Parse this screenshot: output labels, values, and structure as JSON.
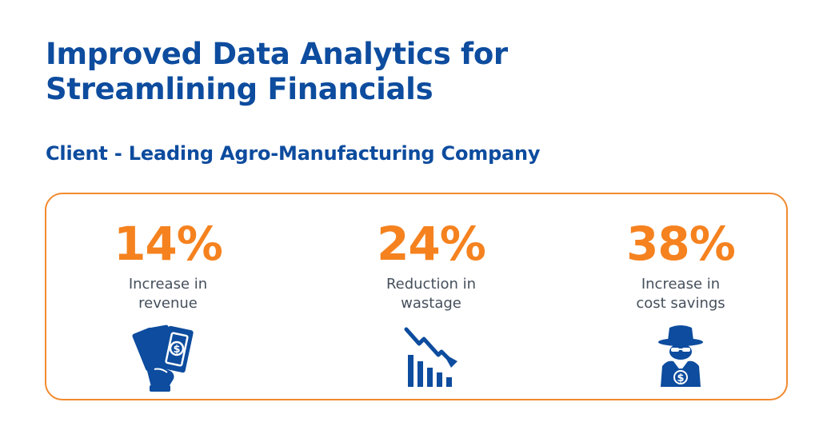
{
  "header": {
    "title_line1": "Improved Data Analytics for",
    "title_line2": "Streamlining Financials",
    "subtitle": "Client - Leading Agro-Manufacturing Company"
  },
  "colors": {
    "brand_blue": "#0d4c9e",
    "accent_orange": "#f5821f",
    "text_gray": "#454f5c"
  },
  "stats": [
    {
      "value": "14%",
      "label_line1": "Increase in",
      "label_line2": "revenue",
      "icon": "money-hand-icon"
    },
    {
      "value": "24%",
      "label_line1": "Reduction in",
      "label_line2": "wastage",
      "icon": "declining-chart-icon"
    },
    {
      "value": "38%",
      "label_line1": "Increase in",
      "label_line2": "cost savings",
      "icon": "spy-money-icon"
    }
  ]
}
